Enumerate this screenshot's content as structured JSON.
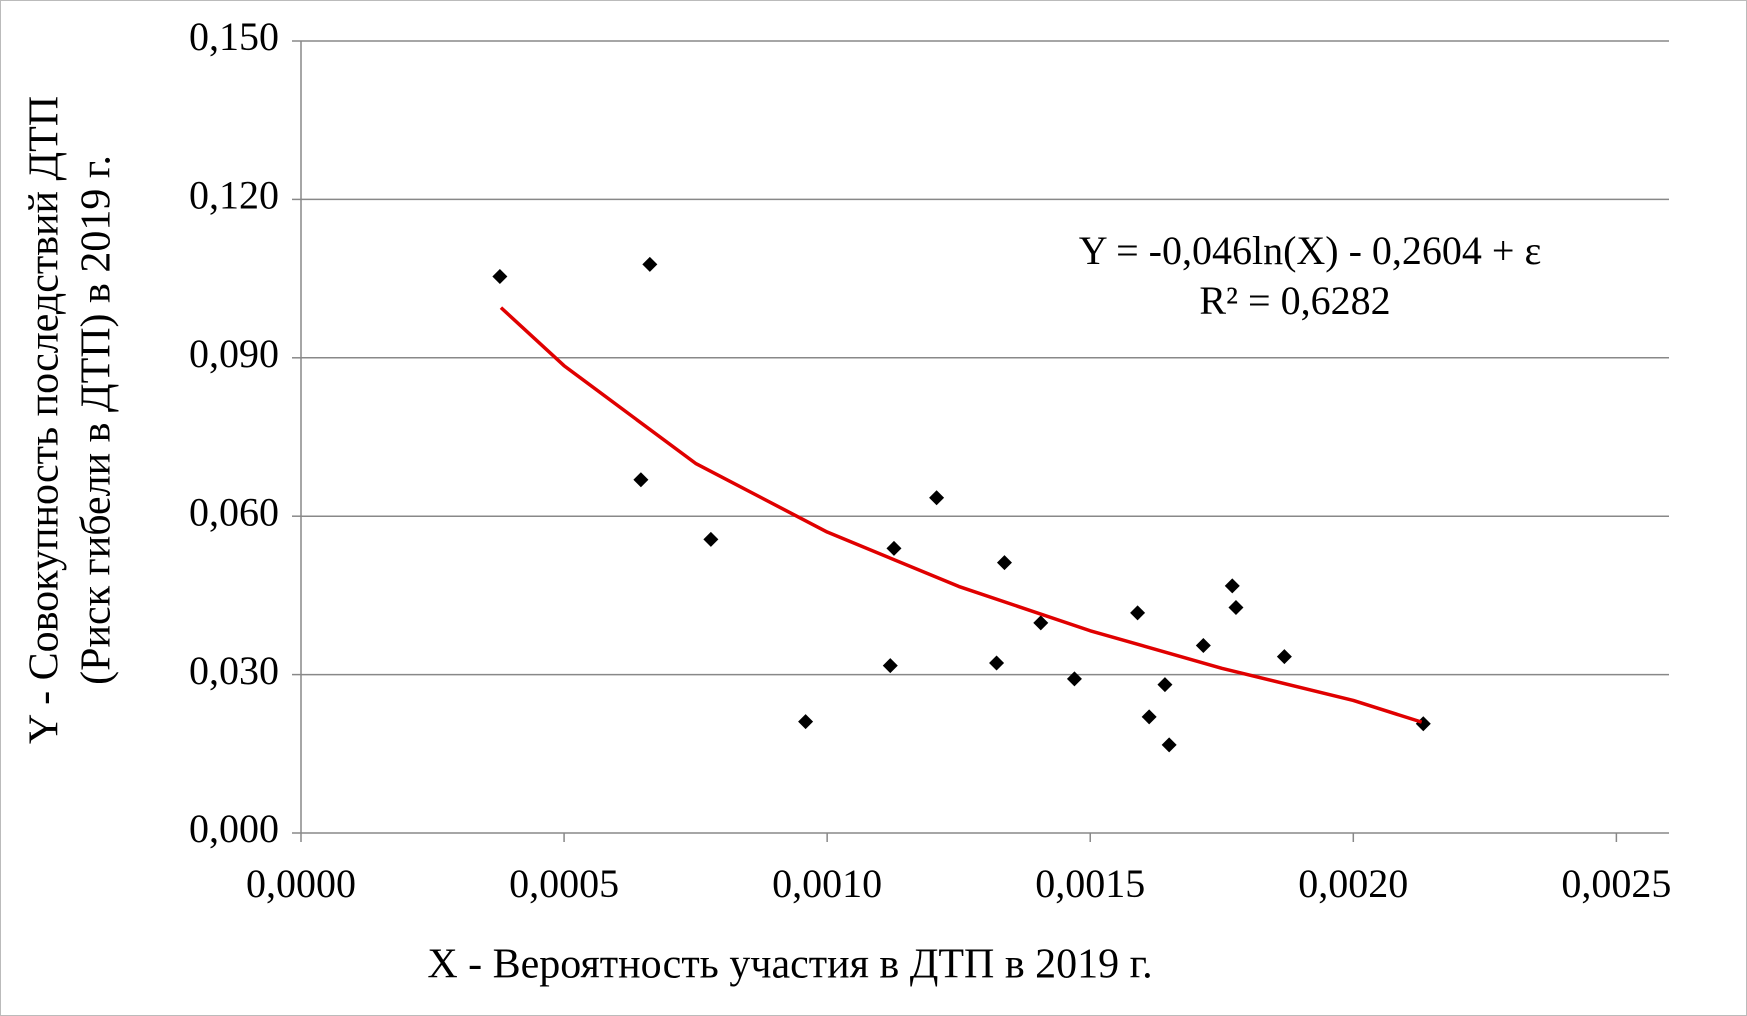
{
  "chart_data": {
    "type": "scatter",
    "ylabel": [
      "Y - Совокупность последствий ДТП",
      "(Риск гибели в ДТП) в 2019 г."
    ],
    "xlabel": "X - Вероятность участия в ДТП в 2019  г.",
    "annotation": [
      "Y = -0,046ln(X)  - 0,2604 + ε",
      "R² = 0,6282"
    ],
    "xlim": [
      0,
      0.0026
    ],
    "ylim": [
      0,
      0.15
    ],
    "xticks": [
      {
        "value": 0,
        "label": "0,0000"
      },
      {
        "value": 0.0005,
        "label": "0,0005"
      },
      {
        "value": 0.001,
        "label": "0,0010"
      },
      {
        "value": 0.0015,
        "label": "0,0015"
      },
      {
        "value": 0.002,
        "label": "0,0020"
      },
      {
        "value": 0.0025,
        "label": "0,0025"
      }
    ],
    "yticks": [
      {
        "value": 0,
        "label": "0,000"
      },
      {
        "value": 0.03,
        "label": "0,030"
      },
      {
        "value": 0.06,
        "label": "0,060"
      },
      {
        "value": 0.09,
        "label": "0,090"
      },
      {
        "value": 0.12,
        "label": "0,120"
      },
      {
        "value": 0.15,
        "label": "0,150"
      }
    ],
    "grid": true,
    "series": [
      {
        "color": "#000000",
        "marker": "diamond",
        "x": [
          0.000378,
          0.000663,
          0.000646,
          0.000779,
          0.000959,
          0.00112,
          0.001127,
          0.001208,
          0.001322,
          0.001337,
          0.001406,
          0.00147,
          0.00159,
          0.001612,
          0.001642,
          0.00165,
          0.001715,
          0.00177,
          0.001777,
          0.001869,
          0.002133
        ],
        "values": [
          0.1054,
          0.1077,
          0.0669,
          0.0556,
          0.0211,
          0.0317,
          0.0539,
          0.0635,
          0.0322,
          0.0512,
          0.0398,
          0.0292,
          0.0417,
          0.022,
          0.0281,
          0.0167,
          0.0355,
          0.0468,
          0.0427,
          0.0334,
          0.0207
        ]
      },
      {
        "color": "#e00000",
        "marker": "line",
        "x": [
          0.00038,
          0.0005,
          0.00075,
          0.001,
          0.00125,
          0.0015,
          0.00175,
          0.002,
          0.00213
        ],
        "values": [
          0.0995,
          0.0885,
          0.07,
          0.057,
          0.0467,
          0.0383,
          0.0312,
          0.0251,
          0.021
        ]
      }
    ]
  }
}
